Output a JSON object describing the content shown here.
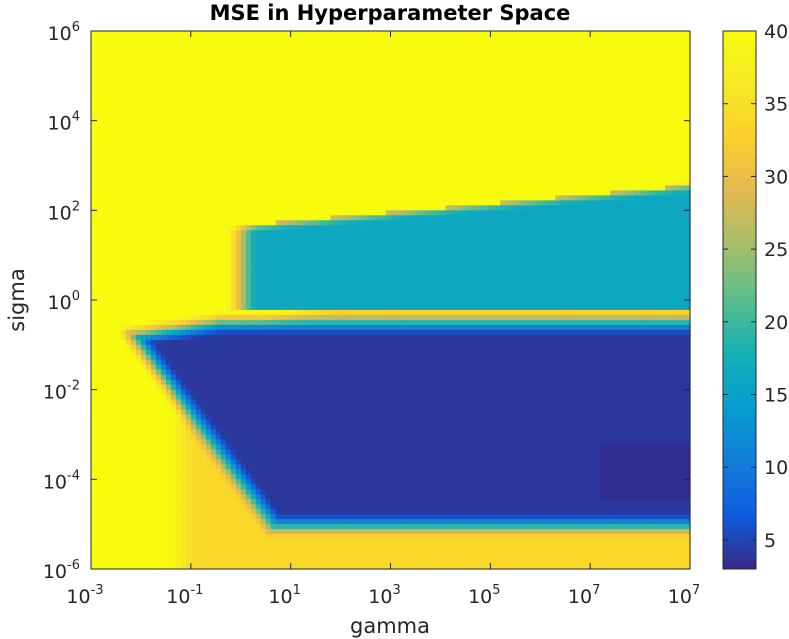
{
  "chart_data": {
    "type": "heatmap",
    "title": "MSE in Hyperparameter Space",
    "xlabel": "gamma",
    "ylabel": "sigma",
    "x_scale": "log",
    "y_scale": "log",
    "xlim": [
      0.001,
      10000000
    ],
    "ylim": [
      1e-06,
      1000000
    ],
    "x_ticks": [
      {
        "base": "10",
        "exp": "-3"
      },
      {
        "base": "10",
        "exp": "-1"
      },
      {
        "base": "10",
        "exp": "1"
      },
      {
        "base": "10",
        "exp": "3"
      },
      {
        "base": "10",
        "exp": "5"
      },
      {
        "base": "10",
        "exp": "7"
      },
      {
        "base": "10",
        "exp": "7"
      }
    ],
    "y_ticks": [
      {
        "base": "10",
        "exp": "-6"
      },
      {
        "base": "10",
        "exp": "-4"
      },
      {
        "base": "10",
        "exp": "-2"
      },
      {
        "base": "10",
        "exp": "0"
      },
      {
        "base": "10",
        "exp": "2"
      },
      {
        "base": "10",
        "exp": "4"
      },
      {
        "base": "10",
        "exp": "6"
      }
    ],
    "colorbar": {
      "colormap": "parula",
      "range": [
        3,
        40
      ],
      "ticks": [
        "5",
        "10",
        "15",
        "20",
        "25",
        "30",
        "35",
        "40"
      ]
    },
    "regions": {
      "outer_value": 40,
      "upper_wedge_value": 34,
      "cyan_band_value": 16,
      "low_valley_value": 4
    }
  }
}
